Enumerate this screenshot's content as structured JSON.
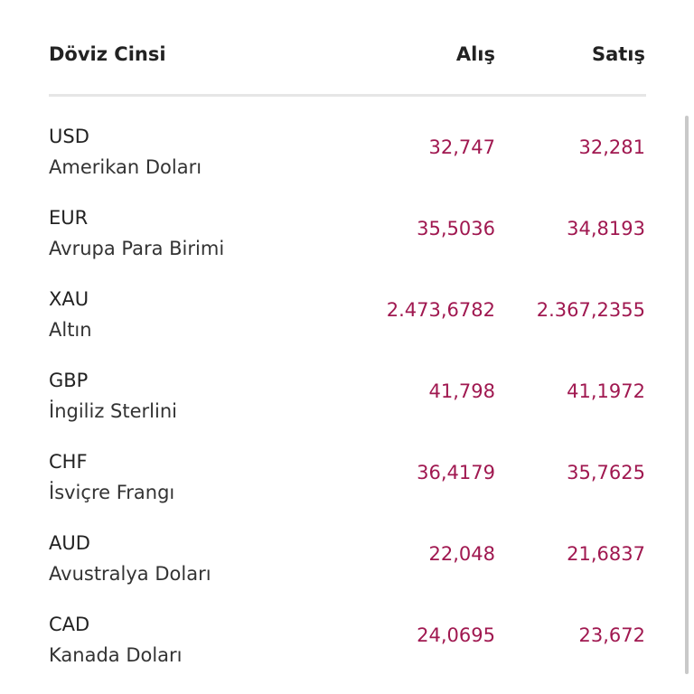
{
  "header": {
    "columns": [
      "Döviz Cinsi",
      "Alış",
      "Satış"
    ]
  },
  "table": {
    "rows": [
      [
        "USD",
        "Amerikan Doları",
        "32,747",
        "32,281"
      ],
      [
        "EUR",
        "Avrupa Para Birimi",
        "35,5036",
        "34,8193"
      ],
      [
        "XAU",
        "Altın",
        "2.473,6782",
        "2.367,2355"
      ],
      [
        "GBP",
        "İngiliz Sterlini",
        "41,798",
        "41,1972"
      ],
      [
        "CHF",
        "İsviçre Frangı",
        "36,4179",
        "35,7625"
      ],
      [
        "AUD",
        "Avustralya Doları",
        "22,048",
        "21,6837"
      ],
      [
        "CAD",
        "Kanada Doları",
        "24,0695",
        "23,672"
      ]
    ]
  }
}
